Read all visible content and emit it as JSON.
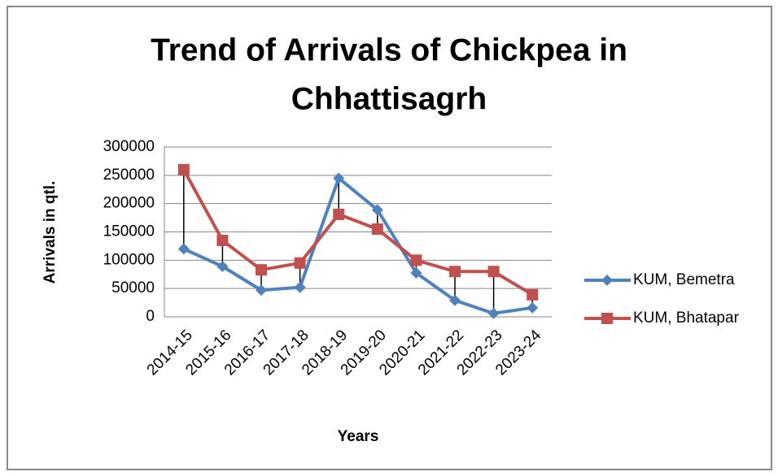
{
  "chart_data": {
    "type": "line",
    "title": [
      "Trend of Arrivals of Chickpea in",
      "Chhattisagrh"
    ],
    "x_label": "Years",
    "y_label": "Arrivals in qtl.",
    "categories": [
      "2014-15",
      "2015-16",
      "2016-17",
      "2017-18",
      "2018-19",
      "2019-20",
      "2020-21",
      "2021-22",
      "2022-23",
      "2023-24"
    ],
    "series": [
      {
        "name": "KUM, Bemetra",
        "color": "#4f81bd",
        "marker": "diamond",
        "values": [
          120000,
          89000,
          47000,
          52000,
          245000,
          189000,
          77500,
          29000,
          6000,
          16000
        ]
      },
      {
        "name": "KUM, Bhatapar",
        "color": "#c0504d",
        "marker": "square",
        "values": [
          260000,
          135000,
          83000,
          95000,
          181000,
          155000,
          100000,
          80000,
          80000,
          39000
        ]
      }
    ],
    "high_low_lines": true,
    "ylim": [
      0,
      300000
    ],
    "yticks": [
      0,
      50000,
      100000,
      150000,
      200000,
      250000,
      300000
    ],
    "grid": true,
    "legend": "right"
  }
}
